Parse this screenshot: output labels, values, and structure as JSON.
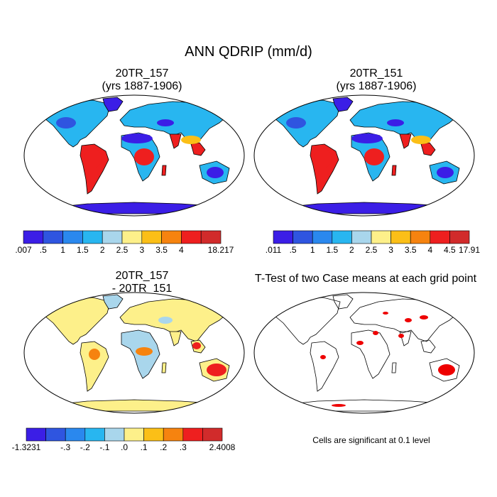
{
  "title": "ANN QDRIP (mm/d)",
  "panels": [
    {
      "id": "p1",
      "title_line1": "20TR_157",
      "title_line2": "(yrs 1887-1906)"
    },
    {
      "id": "p2",
      "title_line1": "20TR_151",
      "title_line2": "(yrs 1887-1906)"
    },
    {
      "id": "p3",
      "title_line1": "20TR_157",
      "title_line2": "- 20TR_151"
    },
    {
      "id": "p4",
      "title_line1": "T-Test of two Case means at each grid point",
      "title_line2": ""
    }
  ],
  "colorbars": [
    {
      "id": "cb1",
      "colors": [
        "#3b1ee6",
        "#2f55e0",
        "#2a88ee",
        "#28b6f0",
        "#a9d6ec",
        "#fdf08a",
        "#fbbf17",
        "#f6830f",
        "#ee1f1f",
        "#d12b2b"
      ],
      "labels": [
        ".007",
        ".5",
        "1",
        "1.5",
        "2",
        "2.5",
        "3",
        "3.5",
        "4",
        "18.217"
      ],
      "label_slots": [
        0,
        1,
        2,
        3,
        4,
        5,
        6,
        7,
        8,
        10
      ]
    },
    {
      "id": "cb2",
      "colors": [
        "#3b1ee6",
        "#2f55e0",
        "#2a88ee",
        "#28b6f0",
        "#a9d6ec",
        "#fdf08a",
        "#fbbf17",
        "#f6830f",
        "#ee1f1f",
        "#d12b2b"
      ],
      "labels": [
        ".011",
        ".5",
        "1",
        "1.5",
        "2",
        "2.5",
        "3",
        "3.5",
        "4",
        "4.5",
        "17.91"
      ],
      "label_slots": [
        0,
        1,
        2,
        3,
        4,
        5,
        6,
        7,
        8,
        9,
        10
      ]
    },
    {
      "id": "cb3",
      "colors": [
        "#3b1ee6",
        "#2f55e0",
        "#2a88ee",
        "#28b6f0",
        "#a9d6ec",
        "#fdf08a",
        "#fbbf17",
        "#f6830f",
        "#ee1f1f",
        "#d12b2b"
      ],
      "labels": [
        "-1.3231",
        "-.3",
        "-.2",
        "-.1",
        ".0",
        ".1",
        ".2",
        ".3",
        "2.4008"
      ],
      "label_slots": [
        0,
        2,
        3,
        4,
        5,
        6,
        7,
        8,
        10
      ]
    }
  ],
  "note": "Cells are significant at 0.1 level",
  "colors": {
    "ocean": "#ffffff",
    "coast": "#000000",
    "significant": "#ee0000",
    "low": "#3b1ee6",
    "mid": "#28b6f0",
    "high": "#ee1f1f",
    "diff_pos": "#fdf08a",
    "diff_neg": "#a9d6ec"
  }
}
